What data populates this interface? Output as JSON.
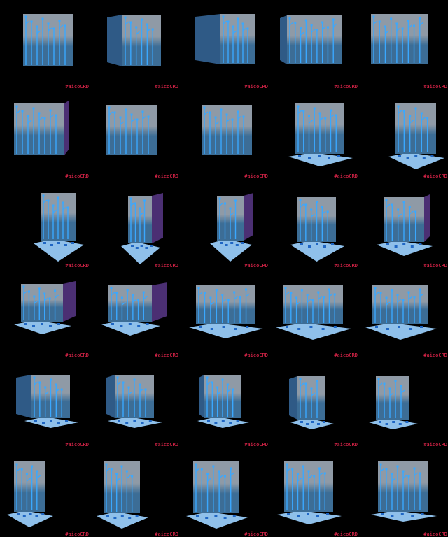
{
  "colors": {
    "background": "#000000",
    "watermark": "#ff2a55",
    "panel_top": "#8f9aa6",
    "panel_bottom": "#3c6d96",
    "circuit_trace": "#3aa8ff",
    "side_panel_dark": "#4b2f73",
    "side_panel_blue": "#2f5a86",
    "floor_tile": "#8fc0ea",
    "floor_trace": "#1f66c4"
  },
  "sprite_sheet": {
    "columns": 5,
    "rows": 6,
    "watermark_text": "#aicoCRD",
    "frames": [
      {
        "back": true,
        "left": false,
        "right": false,
        "floor": false
      },
      {
        "back": true,
        "left": true,
        "right": false,
        "floor": false
      },
      {
        "back": true,
        "left": true,
        "right": true,
        "floor": false
      },
      {
        "back": true,
        "left": true,
        "right": true,
        "floor": false
      },
      {
        "back": true,
        "left": false,
        "right": true,
        "floor": false
      },
      {
        "back": true,
        "left": false,
        "right": true,
        "floor": false
      },
      {
        "back": true,
        "left": false,
        "right": false,
        "floor": false
      },
      {
        "back": true,
        "left": false,
        "right": false,
        "floor": false
      },
      {
        "back": true,
        "left": false,
        "right": false,
        "floor": true
      },
      {
        "back": true,
        "left": true,
        "right": false,
        "floor": true
      },
      {
        "back": true,
        "left": false,
        "right": false,
        "floor": true
      },
      {
        "back": true,
        "left": false,
        "right": true,
        "floor": true
      },
      {
        "back": true,
        "left": false,
        "right": true,
        "floor": true
      },
      {
        "back": true,
        "left": false,
        "right": false,
        "floor": true
      },
      {
        "back": true,
        "left": false,
        "right": true,
        "floor": true
      },
      {
        "back": true,
        "left": false,
        "right": true,
        "floor": true
      },
      {
        "back": true,
        "left": false,
        "right": true,
        "floor": true
      },
      {
        "back": true,
        "left": true,
        "right": true,
        "floor": true
      },
      {
        "back": true,
        "left": true,
        "right": true,
        "floor": true
      },
      {
        "back": true,
        "left": true,
        "right": true,
        "floor": true
      },
      {
        "back": true,
        "left": true,
        "right": false,
        "floor": true
      },
      {
        "back": true,
        "left": true,
        "right": false,
        "floor": true
      },
      {
        "back": true,
        "left": true,
        "right": false,
        "floor": true
      },
      {
        "back": true,
        "left": true,
        "right": false,
        "floor": true
      },
      {
        "back": true,
        "left": true,
        "right": false,
        "floor": true
      },
      {
        "back": true,
        "left": false,
        "right": false,
        "floor": true
      },
      {
        "back": true,
        "left": false,
        "right": false,
        "floor": true
      },
      {
        "back": true,
        "left": false,
        "right": false,
        "floor": true
      },
      {
        "back": true,
        "left": false,
        "right": false,
        "floor": true
      },
      {
        "back": true,
        "left": false,
        "right": false,
        "floor": true
      }
    ]
  }
}
